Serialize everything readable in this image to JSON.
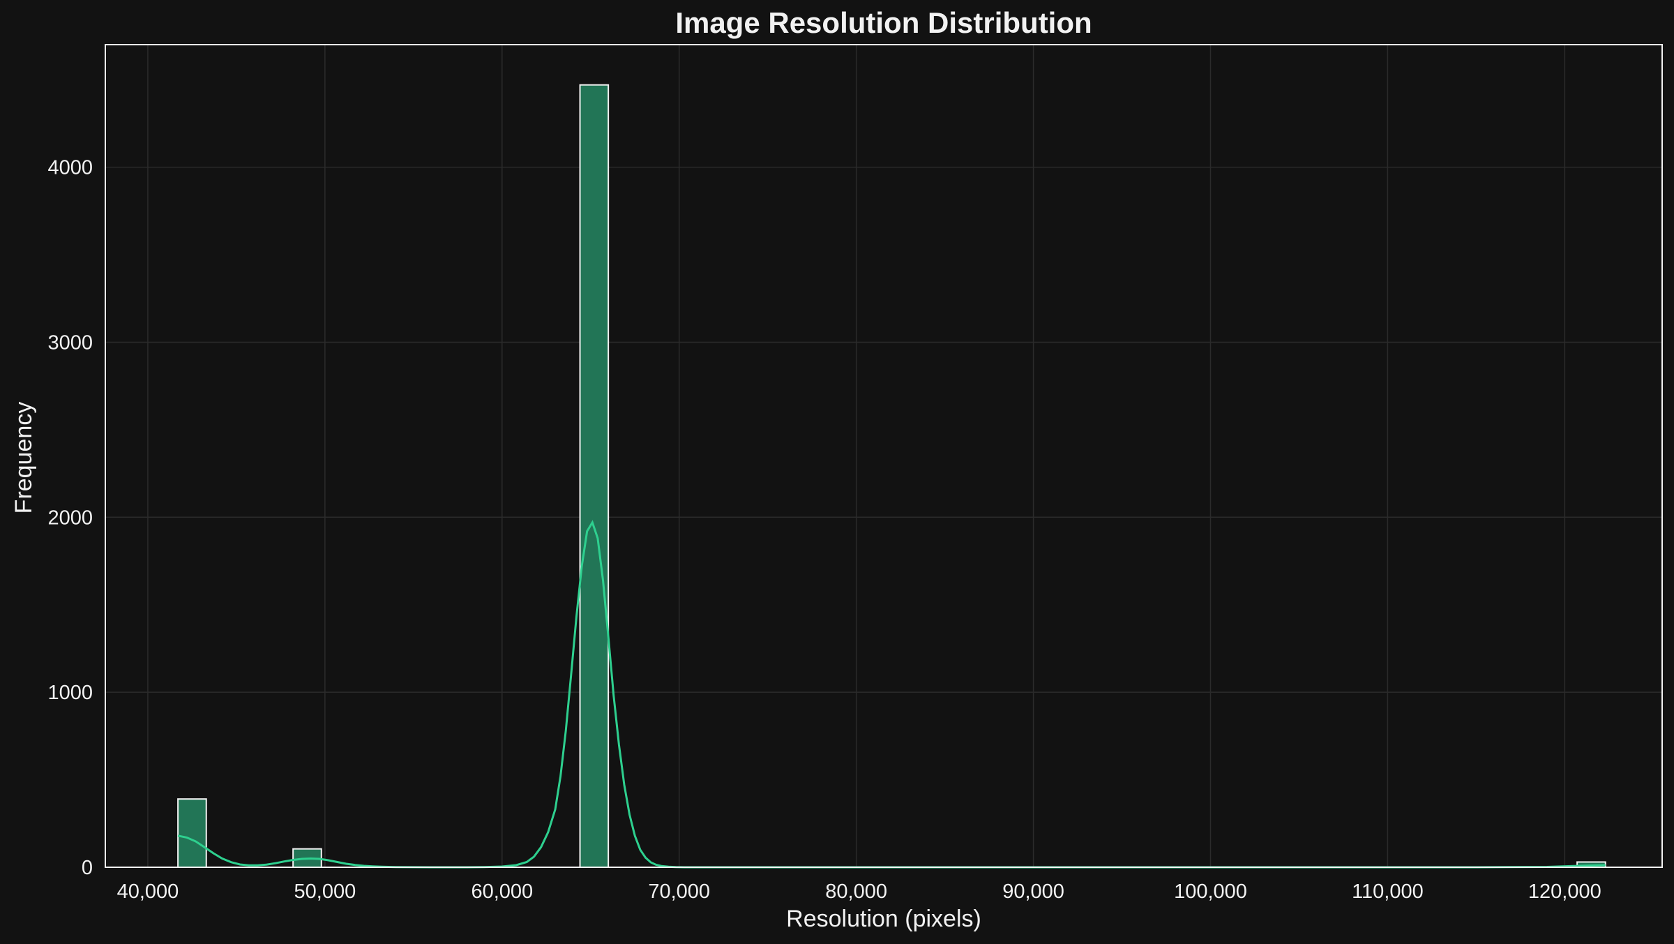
{
  "chart_data": {
    "type": "bar",
    "title": "Image Resolution Distribution",
    "xlabel": "Resolution (pixels)",
    "ylabel": "Frequency",
    "xlim": [
      37600,
      125500
    ],
    "ylim": [
      0,
      4700
    ],
    "xticks": [
      40000,
      50000,
      60000,
      70000,
      80000,
      90000,
      100000,
      110000,
      120000
    ],
    "xtick_labels": [
      "40,000",
      "50,000",
      "60,000",
      "70,000",
      "80,000",
      "90,000",
      "100,000",
      "110,000",
      "120,000"
    ],
    "yticks": [
      0,
      1000,
      2000,
      3000,
      4000
    ],
    "ytick_labels": [
      "0",
      "1000",
      "2000",
      "3000",
      "4000"
    ],
    "grid": true,
    "bins": [
      {
        "x0": 41700,
        "x1": 43300,
        "value": 390
      },
      {
        "x0": 48200,
        "x1": 49800,
        "value": 105
      },
      {
        "x0": 64400,
        "x1": 66000,
        "value": 4470
      },
      {
        "x0": 120700,
        "x1": 122300,
        "value": 30
      }
    ],
    "kde": {
      "x": [
        41700,
        42200,
        42700,
        43200,
        43700,
        44200,
        44700,
        45200,
        45700,
        46200,
        46700,
        47200,
        47700,
        48200,
        48700,
        49200,
        49700,
        50200,
        50700,
        51200,
        51700,
        52200,
        52700,
        53200,
        54000,
        56000,
        58000,
        59000,
        60000,
        60800,
        61400,
        61800,
        62200,
        62600,
        63000,
        63300,
        63600,
        63900,
        64200,
        64500,
        64800,
        65100,
        65400,
        65700,
        66000,
        66300,
        66600,
        66900,
        67200,
        67500,
        67800,
        68100,
        68400,
        68700,
        69000,
        69400,
        69800,
        70300,
        71000,
        72000,
        80000,
        100000,
        115000,
        119000,
        120500,
        121500,
        122300
      ],
      "y": [
        180,
        170,
        148,
        115,
        80,
        50,
        29,
        16,
        11,
        11,
        15,
        23,
        33,
        42,
        48,
        50,
        48,
        40,
        30,
        20,
        13,
        8,
        5,
        3,
        1,
        0,
        0,
        1,
        4,
        12,
        30,
        60,
        115,
        200,
        330,
        520,
        780,
        1100,
        1430,
        1720,
        1920,
        1970,
        1880,
        1640,
        1320,
        980,
        700,
        470,
        300,
        180,
        100,
        55,
        28,
        14,
        7,
        3,
        1,
        0,
        0,
        0,
        0,
        0,
        0,
        2,
        7,
        10,
        12
      ]
    },
    "colors": {
      "background": "#121212",
      "bar_fill": "#227556",
      "bar_edge": "#f2f2f2",
      "kde_line": "#2ed08f",
      "grid": "#2b2b2b",
      "text": "#f2f2f2"
    }
  }
}
